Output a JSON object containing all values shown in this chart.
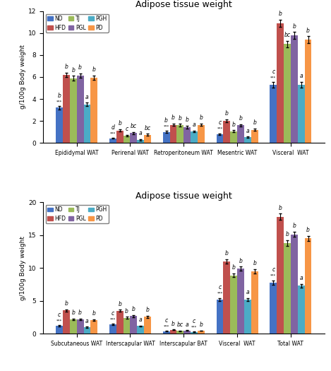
{
  "title1": "Adipose tissue weight",
  "title2": "Adipose tissue weight",
  "ylabel1": "g/100g Body weight",
  "ylabel2": "g/100g Body weight",
  "ylim1": [
    0,
    12
  ],
  "ylim2": [
    0,
    20
  ],
  "yticks1": [
    0,
    2,
    4,
    6,
    8,
    10,
    12
  ],
  "yticks2": [
    0,
    5,
    10,
    15,
    20
  ],
  "colors": [
    "#4472c4",
    "#c0504d",
    "#9bbb59",
    "#8064a2",
    "#4bacc6",
    "#f79646"
  ],
  "legend_labels": [
    "ND",
    "HFD",
    "TJ",
    "PGL",
    "PGH",
    "PD"
  ],
  "chart1": {
    "groups": [
      "Epididymal WAT",
      "Perirenal WAT",
      "Retroperitoneum WAT",
      "Mesentric WAT",
      "Visceral  WAT"
    ],
    "values": [
      [
        3.2,
        6.2,
        5.9,
        6.15,
        3.5,
        5.95
      ],
      [
        0.42,
        1.12,
        0.65,
        0.9,
        0.28,
        0.75
      ],
      [
        1.0,
        1.65,
        1.6,
        1.45,
        1.05,
        1.65
      ],
      [
        0.8,
        2.0,
        1.05,
        1.6,
        0.5,
        1.2
      ],
      [
        5.3,
        10.9,
        9.0,
        9.8,
        5.3,
        9.4
      ]
    ],
    "errors": [
      [
        0.15,
        0.2,
        0.2,
        0.2,
        0.15,
        0.2
      ],
      [
        0.05,
        0.1,
        0.08,
        0.1,
        0.05,
        0.08
      ],
      [
        0.08,
        0.12,
        0.12,
        0.12,
        0.08,
        0.12
      ],
      [
        0.07,
        0.15,
        0.1,
        0.1,
        0.06,
        0.1
      ],
      [
        0.25,
        0.3,
        0.3,
        0.3,
        0.25,
        0.3
      ]
    ],
    "annotations": [
      [
        "***b",
        "b",
        "b",
        "b",
        "a",
        "b"
      ],
      [
        "***d",
        "b",
        "c",
        "bc",
        "a",
        "bc"
      ],
      [
        "***b",
        "b",
        "b",
        "b",
        "a",
        "b"
      ],
      [
        "***c",
        "b",
        "b",
        "b",
        "a",
        "b"
      ],
      [
        "***c",
        "b",
        "bc",
        "b",
        "a",
        "b"
      ]
    ]
  },
  "chart2": {
    "groups": [
      "Subcutaneous WAT",
      "Interscapular WAT",
      "Interscapular BAT",
      "Visceral  WAT",
      "Total WAT"
    ],
    "values": [
      [
        1.2,
        3.55,
        2.2,
        2.2,
        1.0,
        2.1
      ],
      [
        1.45,
        3.5,
        2.45,
        2.7,
        1.2,
        2.6
      ],
      [
        0.42,
        0.6,
        0.45,
        0.5,
        0.3,
        0.48
      ],
      [
        5.2,
        11.0,
        8.9,
        9.9,
        5.2,
        9.5
      ],
      [
        7.8,
        17.8,
        13.8,
        15.1,
        7.3,
        14.5
      ]
    ],
    "errors": [
      [
        0.1,
        0.15,
        0.15,
        0.15,
        0.08,
        0.15
      ],
      [
        0.1,
        0.15,
        0.15,
        0.15,
        0.08,
        0.15
      ],
      [
        0.03,
        0.05,
        0.04,
        0.04,
        0.03,
        0.04
      ],
      [
        0.25,
        0.35,
        0.3,
        0.3,
        0.25,
        0.3
      ],
      [
        0.35,
        0.45,
        0.4,
        0.4,
        0.3,
        0.4
      ]
    ],
    "annotations": [
      [
        "***c",
        "b",
        "b",
        "b",
        "a",
        "b"
      ],
      [
        "***c",
        "b",
        "b",
        "b",
        "a",
        "b"
      ],
      [
        "***c",
        "b",
        "bc",
        "a",
        "***c",
        "b"
      ],
      [
        "***c",
        "b",
        "b",
        "b",
        "a",
        "b"
      ],
      [
        "***c",
        "b",
        "b",
        "b",
        "a",
        "b"
      ]
    ]
  }
}
